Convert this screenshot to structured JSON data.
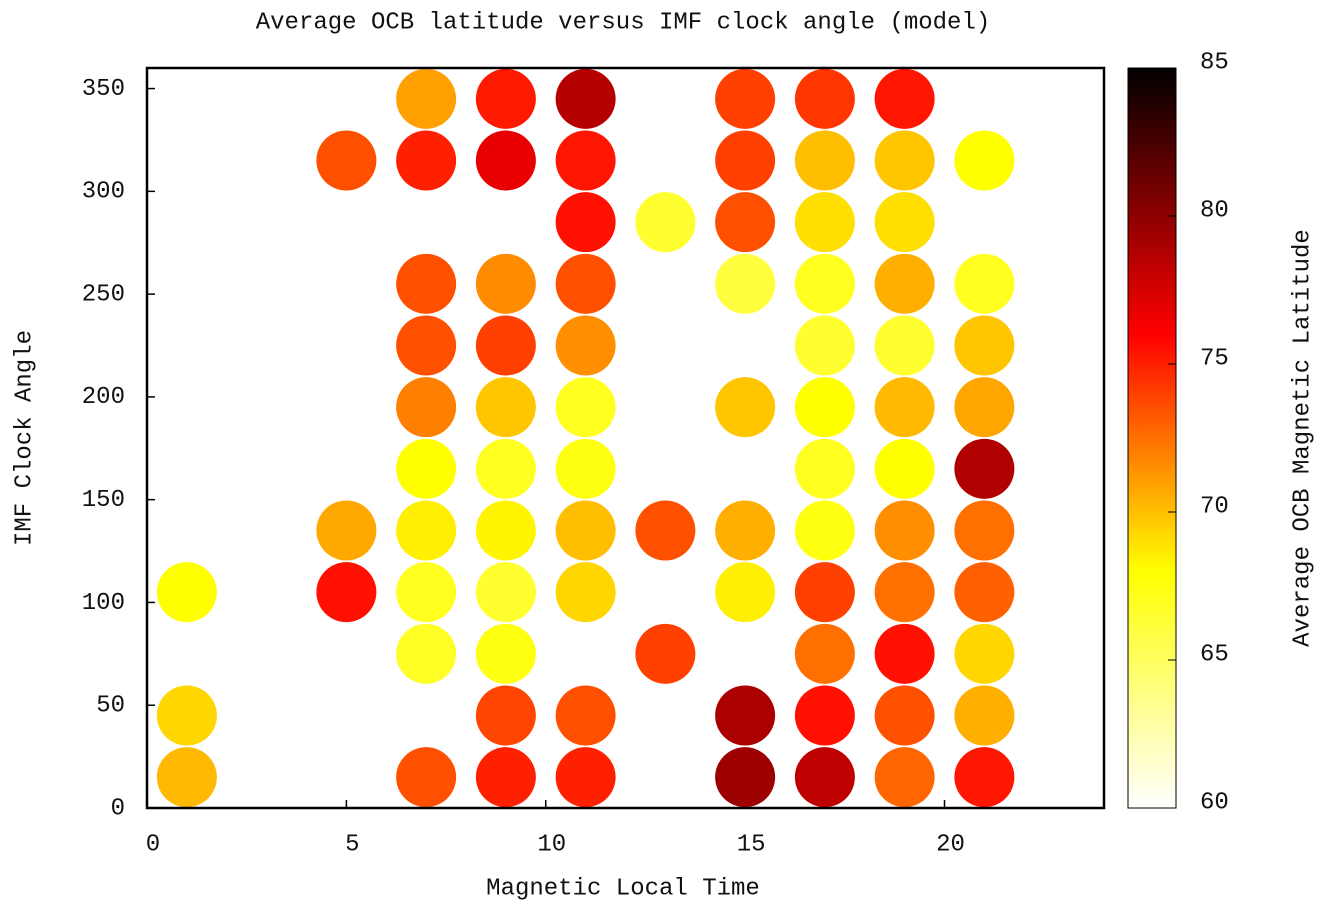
{
  "chart_data": {
    "type": "scatter",
    "title": "Average OCB latitude versus IMF clock angle (model)",
    "x_label": "Magnetic Local Time",
    "y_label": "IMF Clock Angle",
    "colorbar_label": "Average OCB Magnetic Latitude",
    "x": [
      1,
      1,
      1,
      5,
      5,
      5,
      7,
      7,
      7,
      7,
      7,
      7,
      7,
      7,
      7,
      7,
      9,
      9,
      9,
      9,
      9,
      9,
      9,
      9,
      9,
      9,
      9,
      11,
      11,
      11,
      11,
      11,
      11,
      11,
      11,
      11,
      11,
      11,
      13,
      13,
      13,
      15,
      15,
      15,
      15,
      15,
      15,
      15,
      15,
      15,
      17,
      17,
      17,
      17,
      17,
      17,
      17,
      17,
      17,
      17,
      17,
      17,
      19,
      19,
      19,
      19,
      19,
      19,
      19,
      19,
      19,
      19,
      19,
      19,
      21,
      21,
      21,
      21,
      21,
      21,
      21,
      21,
      21,
      21
    ],
    "y": [
      105,
      45,
      15,
      315,
      135,
      105,
      345,
      315,
      255,
      225,
      195,
      165,
      135,
      105,
      75,
      15,
      345,
      315,
      255,
      225,
      195,
      165,
      135,
      105,
      75,
      45,
      15,
      345,
      315,
      285,
      255,
      225,
      195,
      165,
      135,
      105,
      45,
      15,
      285,
      135,
      75,
      345,
      315,
      285,
      255,
      195,
      135,
      105,
      45,
      15,
      345,
      315,
      285,
      255,
      225,
      195,
      165,
      135,
      105,
      75,
      45,
      15,
      345,
      315,
      285,
      255,
      225,
      195,
      165,
      135,
      105,
      75,
      45,
      15,
      315,
      255,
      225,
      195,
      165,
      135,
      105,
      75,
      45,
      15
    ],
    "z": [
      68,
      69.3,
      70.2,
      73.5,
      70.7,
      75.5,
      71,
      75,
      73.5,
      73.5,
      72,
      68,
      68.5,
      67,
      66.8,
      73.5,
      75.2,
      76.8,
      71.6,
      74,
      69.8,
      67,
      68.3,
      66.5,
      67.5,
      73.8,
      75,
      78.6,
      75.3,
      75.5,
      73.5,
      71.5,
      67,
      67.5,
      70,
      69.3,
      73.5,
      75,
      66.5,
      73.5,
      74,
      74,
      74,
      73.5,
      66,
      69.8,
      70.5,
      68.5,
      79,
      79.5,
      74.3,
      70,
      69,
      67,
      66.5,
      68,
      67,
      67.5,
      74,
      72.5,
      75.5,
      78.3,
      75.3,
      69.8,
      69,
      70.5,
      66.5,
      70.2,
      68,
      71.5,
      72.5,
      75.5,
      73.5,
      72.8,
      68,
      67,
      69.8,
      70.8,
      78.8,
      72.5,
      73,
      69.3,
      70.5,
      75.3
    ],
    "colormap": [
      "#ffffff",
      "#ffff00",
      "#ff0000",
      "#000000"
    ],
    "xlim": [
      0,
      24
    ],
    "xticks": [
      0,
      5,
      10,
      15,
      20
    ],
    "ylim": [
      0,
      360
    ],
    "yticks": [
      0,
      50,
      100,
      150,
      200,
      250,
      300,
      350
    ],
    "zlim": [
      60,
      85
    ],
    "zticks": [
      60,
      65,
      70,
      75,
      80,
      85
    ]
  }
}
